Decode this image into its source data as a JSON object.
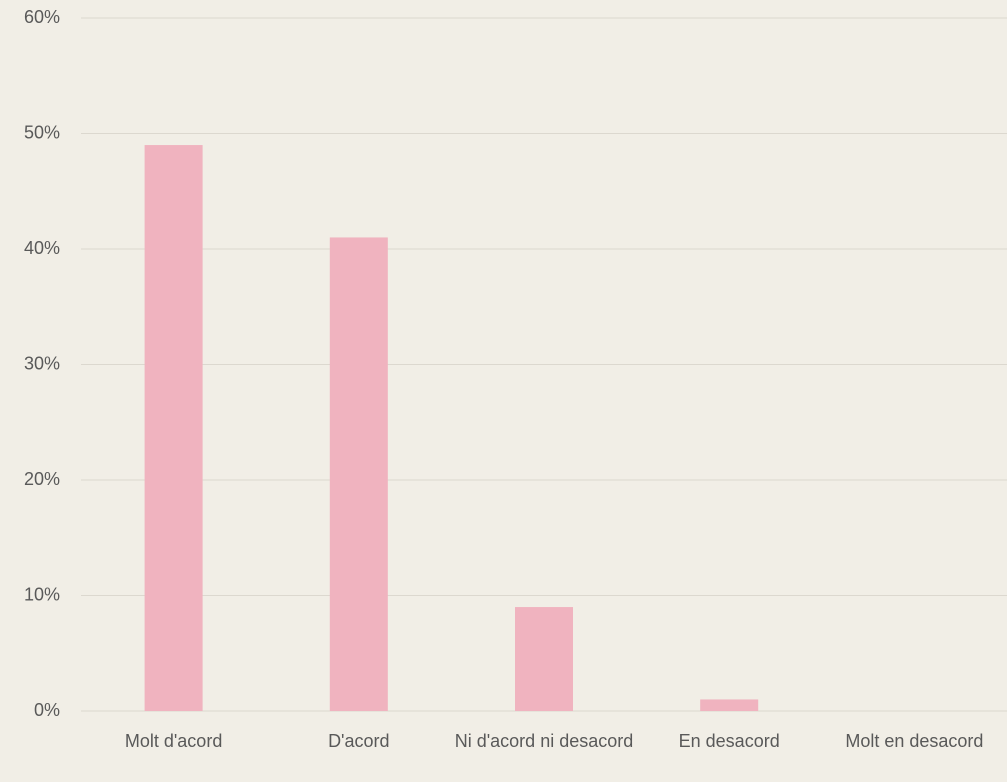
{
  "chart_data": {
    "type": "bar",
    "categories": [
      "Molt d'acord",
      "D'acord",
      "Ni d'acord ni desacord",
      "En desacord",
      "Molt en desacord"
    ],
    "values": [
      49,
      41,
      9,
      1,
      0
    ],
    "color": "#f0b3bf",
    "ylim": [
      0,
      60
    ],
    "yticks": [
      {
        "value": 0,
        "label": "0%"
      },
      {
        "value": 10,
        "label": "10%"
      },
      {
        "value": 20,
        "label": "20%"
      },
      {
        "value": 30,
        "label": "30%"
      },
      {
        "value": 40,
        "label": "40%"
      },
      {
        "value": 50,
        "label": "50%"
      },
      {
        "value": 60,
        "label": "60%"
      }
    ],
    "grid": true
  }
}
